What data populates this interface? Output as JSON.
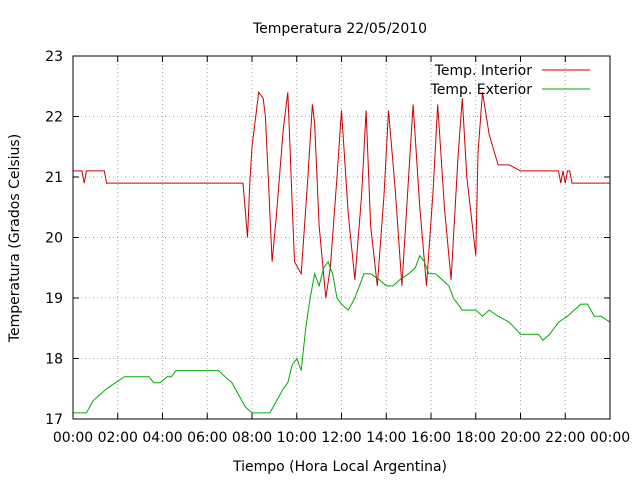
{
  "chart_data": {
    "type": "line",
    "title": "Temperatura 22/05/2010",
    "xlabel": "Tiempo (Hora Local Argentina)",
    "ylabel": "Temperatura (Grados Celsius)",
    "xlim": [
      0,
      24
    ],
    "ylim": [
      17,
      23
    ],
    "x_ticks": [
      "00:00",
      "02:00",
      "04:00",
      "06:00",
      "08:00",
      "10:00",
      "12:00",
      "14:00",
      "16:00",
      "18:00",
      "20:00",
      "22:00",
      "00:00"
    ],
    "y_ticks": [
      "17",
      "18",
      "19",
      "20",
      "21",
      "22",
      "23"
    ],
    "grid": true,
    "legend_position": "top-right",
    "series": [
      {
        "name": "Temp. Interior",
        "color": "#cc0000",
        "x": [
          0,
          0.4,
          0.5,
          0.6,
          0.8,
          1.0,
          1.4,
          1.5,
          2.0,
          6.0,
          7.5,
          7.6,
          7.8,
          7.9,
          8.0,
          8.3,
          8.5,
          8.6,
          8.7,
          8.9,
          9.1,
          9.4,
          9.6,
          9.7,
          9.8,
          9.9,
          10.2,
          10.5,
          10.7,
          10.8,
          11.0,
          11.3,
          11.5,
          11.8,
          12.0,
          12.3,
          12.6,
          12.9,
          13.1,
          13.3,
          13.6,
          13.9,
          14.1,
          14.4,
          14.7,
          15.0,
          15.2,
          15.5,
          15.8,
          16.1,
          16.3,
          16.6,
          16.9,
          17.2,
          17.4,
          17.6,
          18.0,
          18.1,
          18.3,
          18.6,
          19.0,
          19.5,
          20.0,
          21.0,
          21.7,
          21.8,
          21.9,
          22.0,
          22.1,
          22.2,
          22.3,
          22.4,
          24.0
        ],
        "y": [
          21.1,
          21.1,
          20.9,
          21.1,
          21.1,
          21.1,
          21.1,
          20.9,
          20.9,
          20.9,
          20.9,
          20.9,
          20.0,
          20.9,
          21.5,
          22.4,
          22.3,
          22.0,
          21.2,
          19.6,
          20.4,
          21.8,
          22.4,
          21.5,
          20.5,
          19.6,
          19.4,
          21.0,
          22.2,
          21.9,
          20.2,
          19.0,
          19.5,
          21.0,
          22.1,
          20.4,
          19.3,
          20.7,
          22.1,
          20.2,
          19.2,
          20.7,
          22.1,
          20.8,
          19.2,
          21.0,
          22.2,
          20.5,
          19.2,
          20.8,
          22.2,
          20.5,
          19.3,
          21.3,
          22.3,
          21.0,
          19.7,
          21.4,
          22.4,
          21.7,
          21.2,
          21.2,
          21.1,
          21.1,
          21.1,
          20.9,
          21.1,
          20.9,
          21.1,
          21.1,
          20.9,
          20.9,
          20.9
        ]
      },
      {
        "name": "Temp. Exterior",
        "color": "#00aa00",
        "x": [
          0,
          0.6,
          0.9,
          1.2,
          1.5,
          1.9,
          2.3,
          2.6,
          3.0,
          3.4,
          3.6,
          3.9,
          4.2,
          4.4,
          4.6,
          5.0,
          6.0,
          6.5,
          6.8,
          7.1,
          7.4,
          7.7,
          8.0,
          8.5,
          8.8,
          9.1,
          9.4,
          9.6,
          9.8,
          10.0,
          10.2,
          10.4,
          10.6,
          10.8,
          11.0,
          11.2,
          11.4,
          11.6,
          11.8,
          12.0,
          12.3,
          12.6,
          12.8,
          13.0,
          13.3,
          13.7,
          14.0,
          14.3,
          14.6,
          15.0,
          15.3,
          15.5,
          15.7,
          15.9,
          16.2,
          16.5,
          16.8,
          17.0,
          17.4,
          18.0,
          18.3,
          18.6,
          19.0,
          19.5,
          20.0,
          20.8,
          21.0,
          21.3,
          21.7,
          22.1,
          22.4,
          22.7,
          23.0,
          23.3,
          23.6,
          24.0
        ],
        "y": [
          17.1,
          17.1,
          17.3,
          17.4,
          17.5,
          17.6,
          17.7,
          17.7,
          17.7,
          17.7,
          17.6,
          17.6,
          17.7,
          17.7,
          17.8,
          17.8,
          17.8,
          17.8,
          17.7,
          17.6,
          17.4,
          17.2,
          17.1,
          17.1,
          17.1,
          17.3,
          17.5,
          17.6,
          17.9,
          18.0,
          17.8,
          18.5,
          19.0,
          19.4,
          19.2,
          19.5,
          19.6,
          19.4,
          19.0,
          18.9,
          18.8,
          19.0,
          19.2,
          19.4,
          19.4,
          19.3,
          19.2,
          19.2,
          19.3,
          19.4,
          19.5,
          19.7,
          19.6,
          19.4,
          19.4,
          19.3,
          19.2,
          19.0,
          18.8,
          18.8,
          18.7,
          18.8,
          18.7,
          18.6,
          18.4,
          18.4,
          18.3,
          18.4,
          18.6,
          18.7,
          18.8,
          18.9,
          18.9,
          18.7,
          18.7,
          18.6
        ]
      }
    ]
  }
}
